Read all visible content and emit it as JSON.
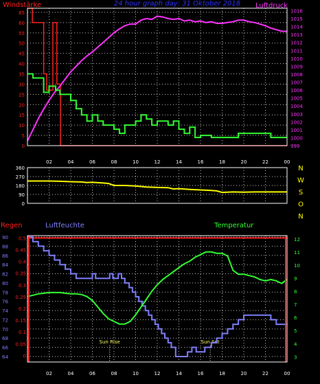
{
  "title": "24 hour graph day: 31 Oktober 2018",
  "x_ticks": [
    "02",
    "04",
    "06",
    "08",
    "10",
    "12",
    "14",
    "16",
    "18",
    "20",
    "22",
    "00"
  ],
  "colors": {
    "wind": "#ff2020",
    "pressure": "#ff33ff",
    "temperature": "#33ff33",
    "humidity": "#8080ff",
    "rain": "#ff2020",
    "direction": "#ffff00",
    "axis": "#ffffff",
    "grid": "#ffffff",
    "title": "#3030ff",
    "compass": "#ffff00"
  },
  "chart_data": [
    {
      "type": "line",
      "title": "24 hour graph day: 31 Oktober 2018",
      "ylabel_left": "Windstärke",
      "ylabel_right": "Luftdruck",
      "x_range": [
        0,
        24
      ],
      "left_ticks": [
        "0",
        "5",
        "10",
        "15",
        "20",
        "25",
        "30",
        "35",
        "40",
        "45",
        "50",
        "55",
        "60",
        "65"
      ],
      "left_ylim": [
        0,
        67
      ],
      "right_ticks": [
        "999",
        "1000",
        "1001",
        "1002",
        "1003",
        "1004",
        "1005",
        "1006",
        "1007",
        "1008",
        "1009",
        "1010",
        "1011",
        "1012",
        "1013",
        "1014",
        "1015",
        "1016"
      ],
      "right_ylim": [
        999,
        1016.3
      ],
      "grid": "dotted",
      "series": [
        {
          "name": "Windstärke",
          "axis": "left",
          "color": "#ff2020",
          "style": "step",
          "x": [
            0,
            0.45,
            0.45,
            1.5,
            1.5,
            1.78,
            1.78,
            2.35,
            2.35,
            2.72,
            2.72,
            3.05,
            3.05,
            24
          ],
          "y": [
            67,
            67,
            60,
            60,
            35,
            35,
            27,
            27,
            60,
            60,
            30,
            30,
            0,
            0
          ]
        },
        {
          "name": "Luftdruck",
          "axis": "right",
          "color": "#ff33ff",
          "style": "line",
          "x": [
            0,
            0.5,
            1,
            1.5,
            2,
            2.5,
            3,
            3.5,
            4,
            4.5,
            5,
            5.5,
            6,
            6.5,
            7,
            7.5,
            8,
            8.5,
            9,
            9.5,
            10,
            10.5,
            11,
            11.5,
            12,
            12.5,
            13,
            13.5,
            14,
            14.5,
            15,
            15.5,
            16,
            16.5,
            17,
            17.5,
            18,
            18.5,
            19,
            19.5,
            20,
            20.5,
            21,
            21.5,
            22,
            22.5,
            23,
            23.5,
            24
          ],
          "y": [
            999.6,
            1001.0,
            1002.4,
            1003.6,
            1004.7,
            1005.7,
            1006.5,
            1007.4,
            1008.3,
            1009.0,
            1009.7,
            1010.3,
            1010.8,
            1011.4,
            1012.0,
            1012.6,
            1013.2,
            1013.7,
            1014.1,
            1014.3,
            1014.3,
            1014.8,
            1015.0,
            1014.9,
            1015.3,
            1015.2,
            1015.0,
            1014.9,
            1015.0,
            1014.7,
            1014.8,
            1014.6,
            1014.7,
            1014.5,
            1014.6,
            1014.4,
            1014.4,
            1014.5,
            1014.6,
            1014.8,
            1014.8,
            1014.6,
            1014.5,
            1014.3,
            1014.1,
            1013.8,
            1013.6,
            1013.4,
            1013.4
          ]
        },
        {
          "name": "Windstärke Mittel",
          "axis": "left",
          "color": "#33ff33",
          "style": "step",
          "x": [
            0,
            0.5,
            0.5,
            1.5,
            1.5,
            2.0,
            2.0,
            2.6,
            2.6,
            3.0,
            3.0,
            4.0,
            4.0,
            4.5,
            4.5,
            5.0,
            5.0,
            5.5,
            5.5,
            6.0,
            6.0,
            6.5,
            6.5,
            7.0,
            7.0,
            8.0,
            8.0,
            8.5,
            8.5,
            9.0,
            9.0,
            10.0,
            10.0,
            10.5,
            10.5,
            11.0,
            11.0,
            11.5,
            11.5,
            12.0,
            12.0,
            13.0,
            13.0,
            13.5,
            13.5,
            14.0,
            14.0,
            14.5,
            14.5,
            15.0,
            15.0,
            15.5,
            15.5,
            16.0,
            16.0,
            17.0,
            17.0,
            19.5,
            19.5,
            22.5,
            22.5,
            24
          ],
          "y": [
            35,
            35,
            33,
            33,
            26,
            26,
            29,
            29,
            27,
            27,
            25,
            25,
            22,
            22,
            18,
            18,
            15,
            15,
            12,
            12,
            15,
            15,
            12,
            12,
            10,
            10,
            8,
            8,
            6,
            6,
            10,
            10,
            12,
            12,
            15,
            15,
            13,
            13,
            10,
            10,
            12,
            12,
            10,
            10,
            12,
            12,
            8,
            8,
            6,
            6,
            9,
            9,
            4,
            4,
            5,
            5,
            4,
            4,
            6,
            6,
            4,
            4
          ]
        }
      ]
    },
    {
      "type": "line",
      "title": "",
      "x_range": [
        0,
        24
      ],
      "left_ticks": [
        "0",
        "90",
        "180",
        "270",
        "360"
      ],
      "left_ylim": [
        0,
        360
      ],
      "right_labels": [
        "N",
        "W",
        "S",
        "O",
        "N"
      ],
      "series": [
        {
          "name": "Windrichtung",
          "color": "#ffff00",
          "style": "line",
          "x": [
            0,
            1,
            2,
            3,
            4,
            5,
            5.5,
            6,
            7,
            7.5,
            8,
            9,
            10,
            11,
            12,
            13,
            13.5,
            14,
            15,
            16,
            17,
            17.5,
            18,
            19,
            20,
            21,
            22,
            23,
            24
          ],
          "y": [
            225,
            225,
            225,
            222,
            218,
            215,
            210,
            212,
            205,
            200,
            180,
            180,
            175,
            165,
            160,
            158,
            145,
            148,
            140,
            135,
            130,
            125,
            110,
            115,
            112,
            115,
            115,
            115,
            115
          ]
        }
      ]
    },
    {
      "type": "line",
      "title": "",
      "ylabel_rain": "Regen",
      "ylabel_humidity": "Luftfeuchte",
      "ylabel_temperature": "Temperatur",
      "x_range": [
        0,
        24
      ],
      "humidity_ticks": [
        "64",
        "66",
        "68",
        "70",
        "72",
        "74",
        "76",
        "78",
        "80",
        "82",
        "84",
        "86",
        "88",
        "90"
      ],
      "humidity_ylim": [
        62.8,
        90.3
      ],
      "rain_ticks": [
        "0",
        "0.05",
        "0.1",
        "0.15",
        "0.2",
        "0.25",
        "0.3",
        "0.35",
        "0.4",
        "0.45",
        "0.5"
      ],
      "rain_ylim": [
        -0.028,
        0.51
      ],
      "temperature_ticks": [
        "3",
        "4",
        "5",
        "6",
        "7",
        "8",
        "9",
        "10",
        "11",
        "12"
      ],
      "temperature_ylim": [
        2.6,
        12.25
      ],
      "annotations": [
        {
          "text": "Sun Rise",
          "x": 7.6
        },
        {
          "text": "Sun Set",
          "x": 16.9
        }
      ],
      "series": [
        {
          "name": "Regen",
          "axis": "rain",
          "color": "#ff2020",
          "style": "line",
          "x": [
            0,
            24
          ],
          "y": [
            0.5,
            0.5
          ]
        },
        {
          "name": "Luftfeuchte",
          "axis": "humidity",
          "color": "#8080ff",
          "style": "step",
          "x": [
            0,
            0.5,
            0.5,
            1.0,
            1.0,
            1.5,
            1.5,
            2.0,
            2.0,
            2.5,
            2.5,
            3.0,
            3.0,
            3.5,
            3.5,
            4.0,
            4.0,
            4.5,
            4.5,
            6.0,
            6.0,
            6.3,
            6.3,
            7.6,
            7.6,
            7.9,
            7.9,
            8.4,
            8.4,
            8.7,
            8.7,
            9.0,
            9.0,
            9.4,
            9.4,
            9.7,
            9.7,
            10.0,
            10.0,
            10.3,
            10.3,
            10.6,
            10.6,
            10.9,
            10.9,
            11.2,
            11.2,
            11.5,
            11.5,
            11.8,
            11.8,
            12.1,
            12.1,
            12.4,
            12.4,
            12.7,
            12.7,
            13.0,
            13.0,
            13.3,
            13.3,
            13.7,
            13.7,
            14.8,
            14.8,
            15.2,
            15.2,
            15.6,
            15.6,
            16.4,
            16.4,
            17.0,
            17.0,
            17.5,
            17.5,
            18.0,
            18.0,
            18.5,
            18.5,
            19.0,
            19.0,
            19.5,
            19.5,
            20.0,
            20.0,
            22.5,
            22.5,
            23.0,
            23.0,
            24
          ],
          "y": [
            90,
            90,
            89,
            89,
            88,
            88,
            87,
            87,
            86,
            86,
            85,
            85,
            84,
            84,
            83,
            83,
            82,
            82,
            81,
            81,
            82,
            82,
            81,
            81,
            82,
            82,
            81,
            81,
            82,
            82,
            81,
            81,
            80,
            80,
            79,
            79,
            78,
            78,
            77,
            77,
            76,
            76,
            75,
            75,
            74,
            74,
            73,
            73,
            72,
            72,
            71,
            71,
            70,
            70,
            69,
            69,
            68,
            68,
            67,
            67,
            66,
            66,
            64,
            64,
            65,
            65,
            66,
            66,
            65,
            65,
            66,
            66,
            67,
            67,
            68,
            68,
            69,
            69,
            70,
            70,
            71,
            71,
            72,
            72,
            73,
            73,
            72,
            72,
            71,
            71
          ]
        },
        {
          "name": "Temperatur",
          "axis": "temperature",
          "color": "#33ff33",
          "style": "line",
          "x": [
            0,
            0.5,
            1,
            1.5,
            2,
            2.5,
            3,
            3.5,
            4,
            4.5,
            5,
            5.5,
            6,
            6.5,
            7,
            7.5,
            8,
            8.5,
            9,
            9.5,
            10,
            10.5,
            11,
            11.5,
            12,
            12.5,
            13,
            13.5,
            14,
            14.5,
            15,
            15.5,
            16,
            16.5,
            17,
            17.5,
            18,
            18.5,
            19,
            19.5,
            20,
            20.5,
            21,
            21.5,
            22,
            22.5,
            23,
            23.5,
            24
          ],
          "y": [
            7.6,
            7.7,
            7.8,
            7.85,
            7.9,
            7.9,
            7.9,
            7.85,
            7.8,
            7.8,
            7.75,
            7.6,
            7.3,
            6.8,
            6.3,
            5.9,
            5.7,
            5.5,
            5.5,
            5.7,
            6.2,
            6.8,
            7.4,
            8.0,
            8.5,
            8.9,
            9.2,
            9.5,
            9.8,
            10.1,
            10.3,
            10.6,
            10.8,
            11.0,
            11.0,
            10.9,
            10.9,
            10.7,
            9.6,
            9.3,
            9.3,
            9.2,
            9.1,
            8.9,
            8.8,
            8.9,
            8.8,
            8.6,
            8.9
          ]
        }
      ]
    }
  ]
}
